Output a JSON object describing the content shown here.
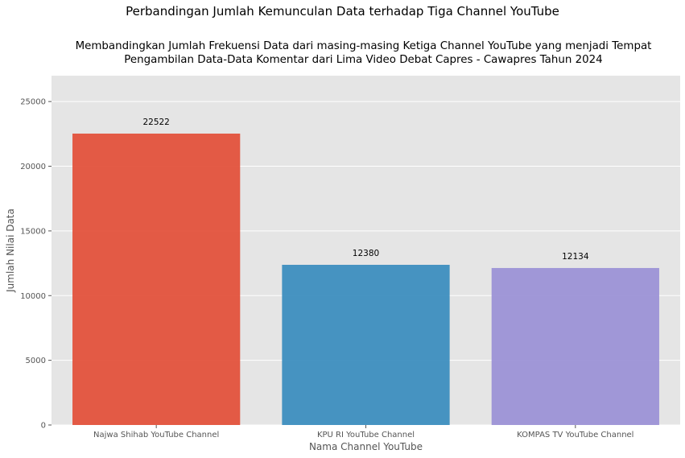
{
  "chart_data": {
    "type": "bar",
    "suptitle": "Perbandingan Jumlah Kemunculan Data terhadap Tiga Channel YouTube",
    "title_lines": [
      "Membandingkan Jumlah Frekuensi Data dari masing-masing Ketiga Channel YouTube yang menjadi Tempat",
      "Pengambilan Data-Data Komentar dari Lima Video Debat Capres - Cawapres Tahun 2024"
    ],
    "xlabel": "Nama Channel YouTube",
    "ylabel": "Jumlah Nilai Data",
    "categories": [
      "Najwa Shihab YouTube Channel",
      "KPU RI YouTube Channel",
      "KOMPAS TV YouTube Channel"
    ],
    "values": [
      22522,
      12380,
      12134
    ],
    "data_labels": [
      "22522",
      "12380",
      "12134"
    ],
    "colors": [
      "#E24A33",
      "#348ABD",
      "#988ED5"
    ],
    "bar_opacity": 0.9,
    "ylim": [
      0,
      27000
    ],
    "yticks": [
      0,
      5000,
      10000,
      15000,
      20000,
      25000
    ],
    "ytick_labels": [
      "0",
      "5000",
      "10000",
      "15000",
      "20000",
      "25000"
    ],
    "grid": true,
    "background": "#E5E5E5",
    "grid_color": "#FFFFFF"
  }
}
